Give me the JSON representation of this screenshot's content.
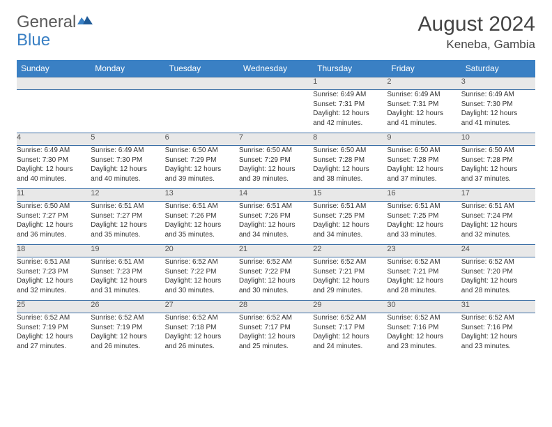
{
  "logo": {
    "text1": "General",
    "text2": "Blue"
  },
  "header": {
    "month": "August 2024",
    "location": "Keneba, Gambia"
  },
  "colors": {
    "header_bg": "#3a80c4",
    "header_text": "#ffffff",
    "daynum_bg": "#e8e8e8",
    "row_divider": "#3a6ea5",
    "body_text": "#333333",
    "title_text": "#444444",
    "logo_gray": "#5a5a5a",
    "logo_blue": "#3a80c4"
  },
  "weekdays": [
    "Sunday",
    "Monday",
    "Tuesday",
    "Wednesday",
    "Thursday",
    "Friday",
    "Saturday"
  ],
  "weeks": [
    [
      null,
      null,
      null,
      null,
      {
        "n": "1",
        "sr": "Sunrise: 6:49 AM",
        "ss": "Sunset: 7:31 PM",
        "d1": "Daylight: 12 hours",
        "d2": "and 42 minutes."
      },
      {
        "n": "2",
        "sr": "Sunrise: 6:49 AM",
        "ss": "Sunset: 7:31 PM",
        "d1": "Daylight: 12 hours",
        "d2": "and 41 minutes."
      },
      {
        "n": "3",
        "sr": "Sunrise: 6:49 AM",
        "ss": "Sunset: 7:30 PM",
        "d1": "Daylight: 12 hours",
        "d2": "and 41 minutes."
      }
    ],
    [
      {
        "n": "4",
        "sr": "Sunrise: 6:49 AM",
        "ss": "Sunset: 7:30 PM",
        "d1": "Daylight: 12 hours",
        "d2": "and 40 minutes."
      },
      {
        "n": "5",
        "sr": "Sunrise: 6:49 AM",
        "ss": "Sunset: 7:30 PM",
        "d1": "Daylight: 12 hours",
        "d2": "and 40 minutes."
      },
      {
        "n": "6",
        "sr": "Sunrise: 6:50 AM",
        "ss": "Sunset: 7:29 PM",
        "d1": "Daylight: 12 hours",
        "d2": "and 39 minutes."
      },
      {
        "n": "7",
        "sr": "Sunrise: 6:50 AM",
        "ss": "Sunset: 7:29 PM",
        "d1": "Daylight: 12 hours",
        "d2": "and 39 minutes."
      },
      {
        "n": "8",
        "sr": "Sunrise: 6:50 AM",
        "ss": "Sunset: 7:28 PM",
        "d1": "Daylight: 12 hours",
        "d2": "and 38 minutes."
      },
      {
        "n": "9",
        "sr": "Sunrise: 6:50 AM",
        "ss": "Sunset: 7:28 PM",
        "d1": "Daylight: 12 hours",
        "d2": "and 37 minutes."
      },
      {
        "n": "10",
        "sr": "Sunrise: 6:50 AM",
        "ss": "Sunset: 7:28 PM",
        "d1": "Daylight: 12 hours",
        "d2": "and 37 minutes."
      }
    ],
    [
      {
        "n": "11",
        "sr": "Sunrise: 6:50 AM",
        "ss": "Sunset: 7:27 PM",
        "d1": "Daylight: 12 hours",
        "d2": "and 36 minutes."
      },
      {
        "n": "12",
        "sr": "Sunrise: 6:51 AM",
        "ss": "Sunset: 7:27 PM",
        "d1": "Daylight: 12 hours",
        "d2": "and 35 minutes."
      },
      {
        "n": "13",
        "sr": "Sunrise: 6:51 AM",
        "ss": "Sunset: 7:26 PM",
        "d1": "Daylight: 12 hours",
        "d2": "and 35 minutes."
      },
      {
        "n": "14",
        "sr": "Sunrise: 6:51 AM",
        "ss": "Sunset: 7:26 PM",
        "d1": "Daylight: 12 hours",
        "d2": "and 34 minutes."
      },
      {
        "n": "15",
        "sr": "Sunrise: 6:51 AM",
        "ss": "Sunset: 7:25 PM",
        "d1": "Daylight: 12 hours",
        "d2": "and 34 minutes."
      },
      {
        "n": "16",
        "sr": "Sunrise: 6:51 AM",
        "ss": "Sunset: 7:25 PM",
        "d1": "Daylight: 12 hours",
        "d2": "and 33 minutes."
      },
      {
        "n": "17",
        "sr": "Sunrise: 6:51 AM",
        "ss": "Sunset: 7:24 PM",
        "d1": "Daylight: 12 hours",
        "d2": "and 32 minutes."
      }
    ],
    [
      {
        "n": "18",
        "sr": "Sunrise: 6:51 AM",
        "ss": "Sunset: 7:23 PM",
        "d1": "Daylight: 12 hours",
        "d2": "and 32 minutes."
      },
      {
        "n": "19",
        "sr": "Sunrise: 6:51 AM",
        "ss": "Sunset: 7:23 PM",
        "d1": "Daylight: 12 hours",
        "d2": "and 31 minutes."
      },
      {
        "n": "20",
        "sr": "Sunrise: 6:52 AM",
        "ss": "Sunset: 7:22 PM",
        "d1": "Daylight: 12 hours",
        "d2": "and 30 minutes."
      },
      {
        "n": "21",
        "sr": "Sunrise: 6:52 AM",
        "ss": "Sunset: 7:22 PM",
        "d1": "Daylight: 12 hours",
        "d2": "and 30 minutes."
      },
      {
        "n": "22",
        "sr": "Sunrise: 6:52 AM",
        "ss": "Sunset: 7:21 PM",
        "d1": "Daylight: 12 hours",
        "d2": "and 29 minutes."
      },
      {
        "n": "23",
        "sr": "Sunrise: 6:52 AM",
        "ss": "Sunset: 7:21 PM",
        "d1": "Daylight: 12 hours",
        "d2": "and 28 minutes."
      },
      {
        "n": "24",
        "sr": "Sunrise: 6:52 AM",
        "ss": "Sunset: 7:20 PM",
        "d1": "Daylight: 12 hours",
        "d2": "and 28 minutes."
      }
    ],
    [
      {
        "n": "25",
        "sr": "Sunrise: 6:52 AM",
        "ss": "Sunset: 7:19 PM",
        "d1": "Daylight: 12 hours",
        "d2": "and 27 minutes."
      },
      {
        "n": "26",
        "sr": "Sunrise: 6:52 AM",
        "ss": "Sunset: 7:19 PM",
        "d1": "Daylight: 12 hours",
        "d2": "and 26 minutes."
      },
      {
        "n": "27",
        "sr": "Sunrise: 6:52 AM",
        "ss": "Sunset: 7:18 PM",
        "d1": "Daylight: 12 hours",
        "d2": "and 26 minutes."
      },
      {
        "n": "28",
        "sr": "Sunrise: 6:52 AM",
        "ss": "Sunset: 7:17 PM",
        "d1": "Daylight: 12 hours",
        "d2": "and 25 minutes."
      },
      {
        "n": "29",
        "sr": "Sunrise: 6:52 AM",
        "ss": "Sunset: 7:17 PM",
        "d1": "Daylight: 12 hours",
        "d2": "and 24 minutes."
      },
      {
        "n": "30",
        "sr": "Sunrise: 6:52 AM",
        "ss": "Sunset: 7:16 PM",
        "d1": "Daylight: 12 hours",
        "d2": "and 23 minutes."
      },
      {
        "n": "31",
        "sr": "Sunrise: 6:52 AM",
        "ss": "Sunset: 7:16 PM",
        "d1": "Daylight: 12 hours",
        "d2": "and 23 minutes."
      }
    ]
  ]
}
